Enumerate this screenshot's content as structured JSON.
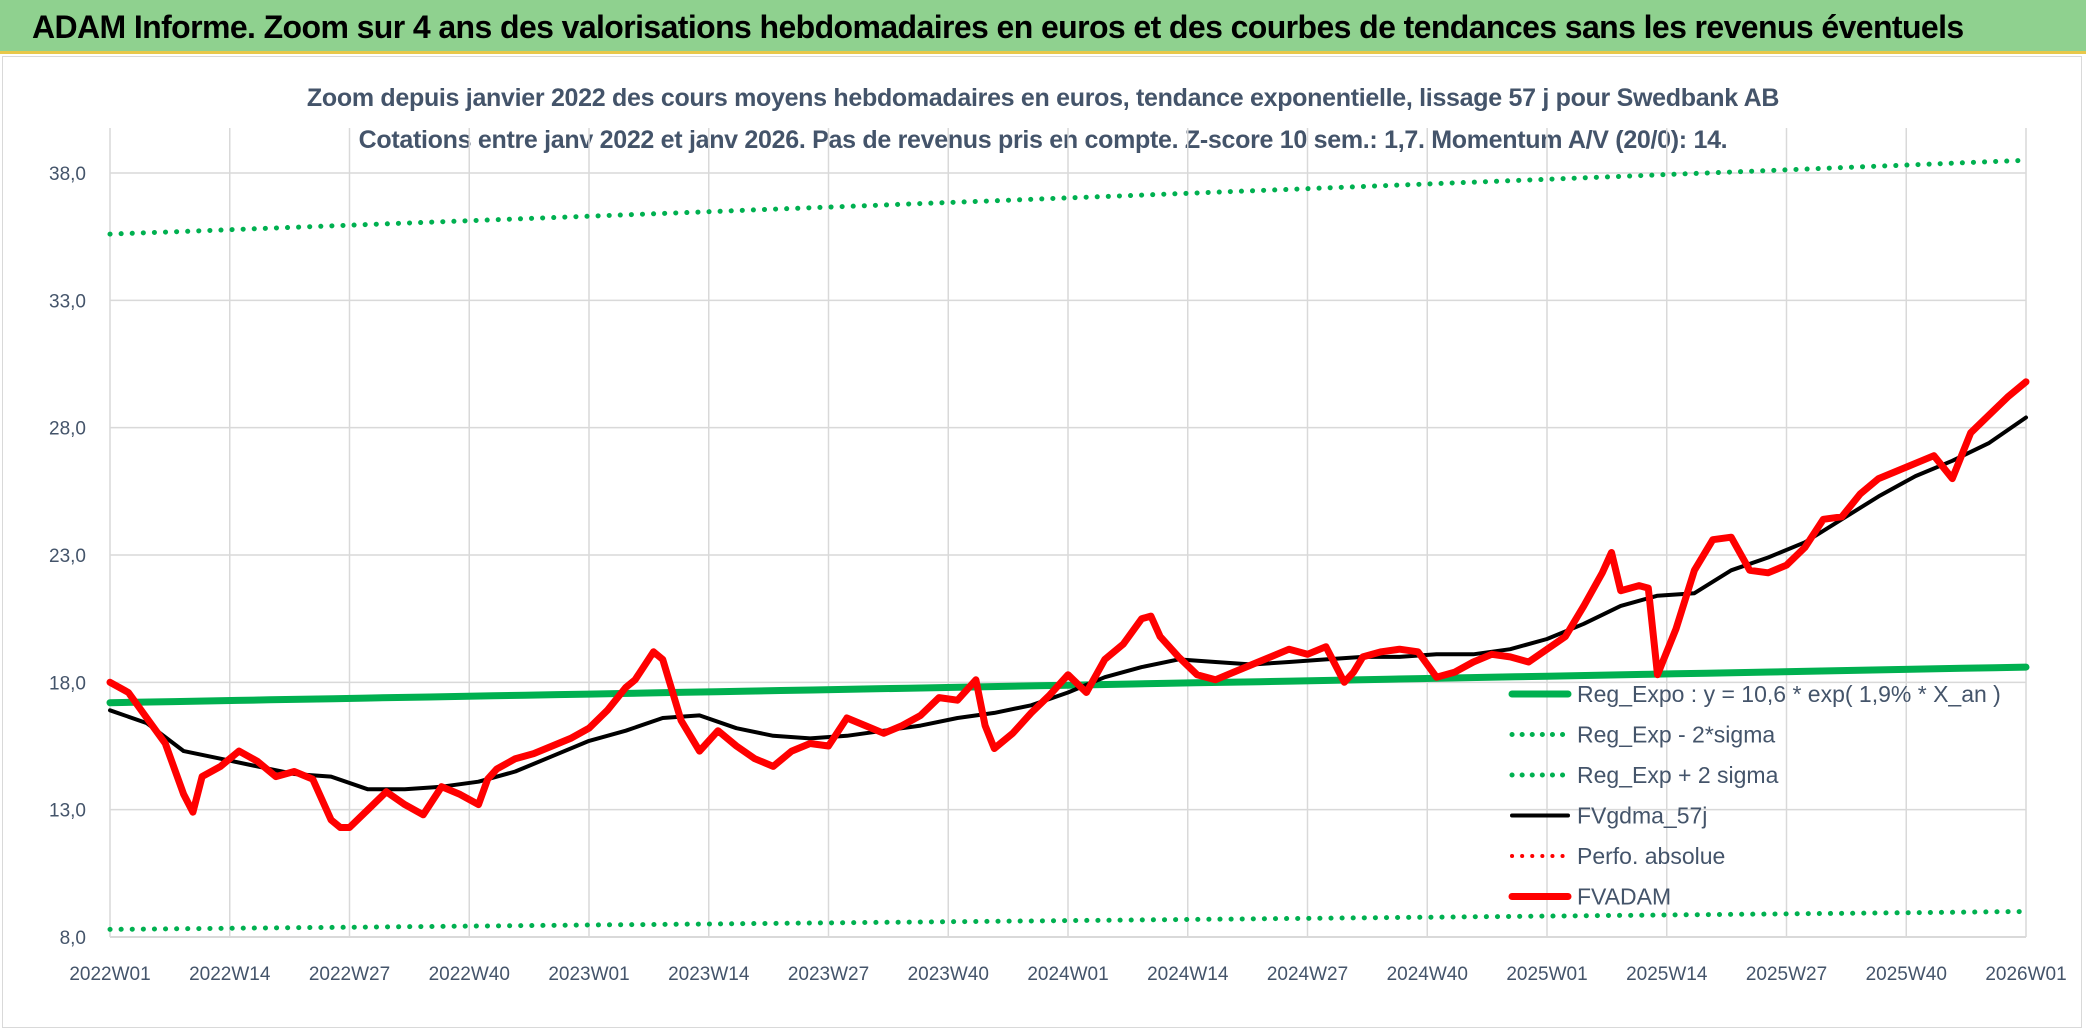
{
  "banner": {
    "title": "ADAM Informe. Zoom sur 4 ans des valorisations hebdomadaires en euros et des courbes de tendances sans les revenus éventuels"
  },
  "chart_data": {
    "type": "line",
    "title": "Zoom depuis janvier 2022 des cours moyens hebdomadaires en euros, tendance exponentielle, lissage 57 j pour Swedbank AB",
    "subtitle": "Cotations entre janv 2022 et janv 2026. Pas de revenus pris en compte. Z-score 10 sem.: 1,7. Momentum A/V (20/0): 14.",
    "xlabel": "",
    "ylabel": "",
    "ylim": [
      8,
      40
    ],
    "yticks": [
      "8,0",
      "13,0",
      "18,0",
      "23,0",
      "28,0",
      "33,0",
      "38,0"
    ],
    "ytick_values": [
      8,
      13,
      18,
      23,
      28,
      33,
      38
    ],
    "x_range": [
      0,
      208
    ],
    "xticks": [
      "2022W01",
      "2022W14",
      "2022W27",
      "2022W40",
      "2023W01",
      "2023W14",
      "2023W27",
      "2023W40",
      "2024W01",
      "2024W14",
      "2024W27",
      "2024W40",
      "2025W01",
      "2025W14",
      "2025W27",
      "2025W40",
      "2026W01"
    ],
    "xtick_values": [
      0,
      13,
      26,
      39,
      52,
      65,
      78,
      91,
      104,
      117,
      130,
      143,
      156,
      169,
      182,
      195,
      208
    ],
    "grid": true,
    "legend_position": "bottom-right",
    "series": [
      {
        "name": "Reg_Expo : y = 10,6 * exp( 1,9% *  X_an )",
        "color": "#00b050",
        "style": "solid",
        "width": 7,
        "x": [
          0,
          208
        ],
        "values": [
          17.2,
          18.6
        ]
      },
      {
        "name": "Reg_Exp - 2*sigma",
        "color": "#00b050",
        "style": "dotted",
        "width": 5,
        "x": [
          0,
          208
        ],
        "values": [
          8.3,
          9.0
        ]
      },
      {
        "name": "Reg_Exp + 2 sigma",
        "color": "#00b050",
        "style": "dotted",
        "width": 5,
        "x": [
          0,
          208
        ],
        "values": [
          35.6,
          38.5
        ]
      },
      {
        "name": "FVgdma_57j",
        "color": "#000000",
        "style": "solid",
        "width": 4,
        "x": [
          0,
          4,
          8,
          12,
          16,
          20,
          24,
          28,
          32,
          36,
          40,
          44,
          48,
          52,
          56,
          60,
          64,
          68,
          72,
          76,
          80,
          84,
          88,
          92,
          96,
          100,
          104,
          108,
          112,
          116,
          120,
          124,
          128,
          132,
          136,
          140,
          144,
          148,
          152,
          156,
          160,
          164,
          168,
          172,
          176,
          180,
          184,
          188,
          192,
          196,
          200,
          204,
          208
        ],
        "values": [
          16.9,
          16.4,
          15.3,
          15.0,
          14.7,
          14.4,
          14.3,
          13.8,
          13.8,
          13.9,
          14.1,
          14.5,
          15.1,
          15.7,
          16.1,
          16.6,
          16.7,
          16.2,
          15.9,
          15.8,
          15.9,
          16.1,
          16.3,
          16.6,
          16.8,
          17.1,
          17.6,
          18.2,
          18.6,
          18.9,
          18.8,
          18.7,
          18.8,
          18.9,
          19.0,
          19.0,
          19.1,
          19.1,
          19.3,
          19.7,
          20.3,
          21.0,
          21.4,
          21.5,
          22.4,
          22.9,
          23.5,
          24.4,
          25.3,
          26.1,
          26.7,
          27.4,
          28.4
        ]
      },
      {
        "name": "Perfo. absolue",
        "color": "#ff0000",
        "style": "dotted",
        "width": 4,
        "x": [],
        "values": []
      },
      {
        "name": "FVADAM",
        "color": "#ff0000",
        "style": "solid",
        "width": 7,
        "x": [
          0,
          2,
          4,
          6,
          8,
          9,
          10,
          12,
          14,
          16,
          18,
          20,
          22,
          24,
          25,
          26,
          28,
          30,
          32,
          34,
          36,
          38,
          40,
          41,
          42,
          44,
          46,
          48,
          50,
          52,
          54,
          56,
          57,
          59,
          60,
          62,
          64,
          66,
          68,
          70,
          72,
          74,
          76,
          78,
          80,
          82,
          84,
          86,
          88,
          90,
          92,
          94,
          95,
          96,
          98,
          100,
          102,
          104,
          106,
          108,
          110,
          112,
          113,
          114,
          116,
          118,
          119,
          120,
          122,
          124,
          126,
          128,
          130,
          132,
          134,
          135,
          136,
          138,
          140,
          142,
          144,
          146,
          148,
          150,
          152,
          154,
          156,
          158,
          160,
          162,
          163,
          164,
          166,
          167,
          168,
          170,
          172,
          174,
          176,
          178,
          180,
          182,
          184,
          186,
          188,
          190,
          192,
          194,
          196,
          198,
          200,
          201,
          202,
          204,
          206,
          208
        ],
        "values": [
          18.0,
          17.6,
          16.6,
          15.6,
          13.6,
          12.9,
          14.3,
          14.7,
          15.3,
          14.9,
          14.3,
          14.5,
          14.2,
          12.6,
          12.3,
          12.3,
          13.0,
          13.7,
          13.2,
          12.8,
          13.9,
          13.6,
          13.2,
          14.2,
          14.6,
          15.0,
          15.2,
          15.5,
          15.8,
          16.2,
          16.9,
          17.8,
          18.1,
          19.2,
          18.9,
          16.5,
          15.3,
          16.1,
          15.5,
          15.0,
          14.7,
          15.3,
          15.6,
          15.5,
          16.6,
          16.3,
          16.0,
          16.3,
          16.7,
          17.4,
          17.3,
          18.1,
          16.3,
          15.4,
          16.0,
          16.8,
          17.5,
          18.3,
          17.6,
          18.9,
          19.5,
          20.5,
          20.6,
          19.8,
          19.0,
          18.3,
          18.2,
          18.1,
          18.4,
          18.7,
          19.0,
          19.3,
          19.1,
          19.4,
          18.0,
          18.4,
          19.0,
          19.2,
          19.3,
          19.2,
          18.2,
          18.4,
          18.8,
          19.1,
          19.0,
          18.8,
          19.3,
          19.8,
          21.0,
          22.3,
          23.1,
          21.6,
          21.8,
          21.7,
          18.3,
          20.1,
          22.4,
          23.6,
          23.7,
          22.4,
          22.3,
          22.6,
          23.3,
          24.4,
          24.5,
          25.4,
          26.0,
          26.3,
          26.6,
          26.9,
          26.0,
          26.9,
          27.8,
          28.5,
          29.2,
          29.8
        ]
      }
    ]
  }
}
